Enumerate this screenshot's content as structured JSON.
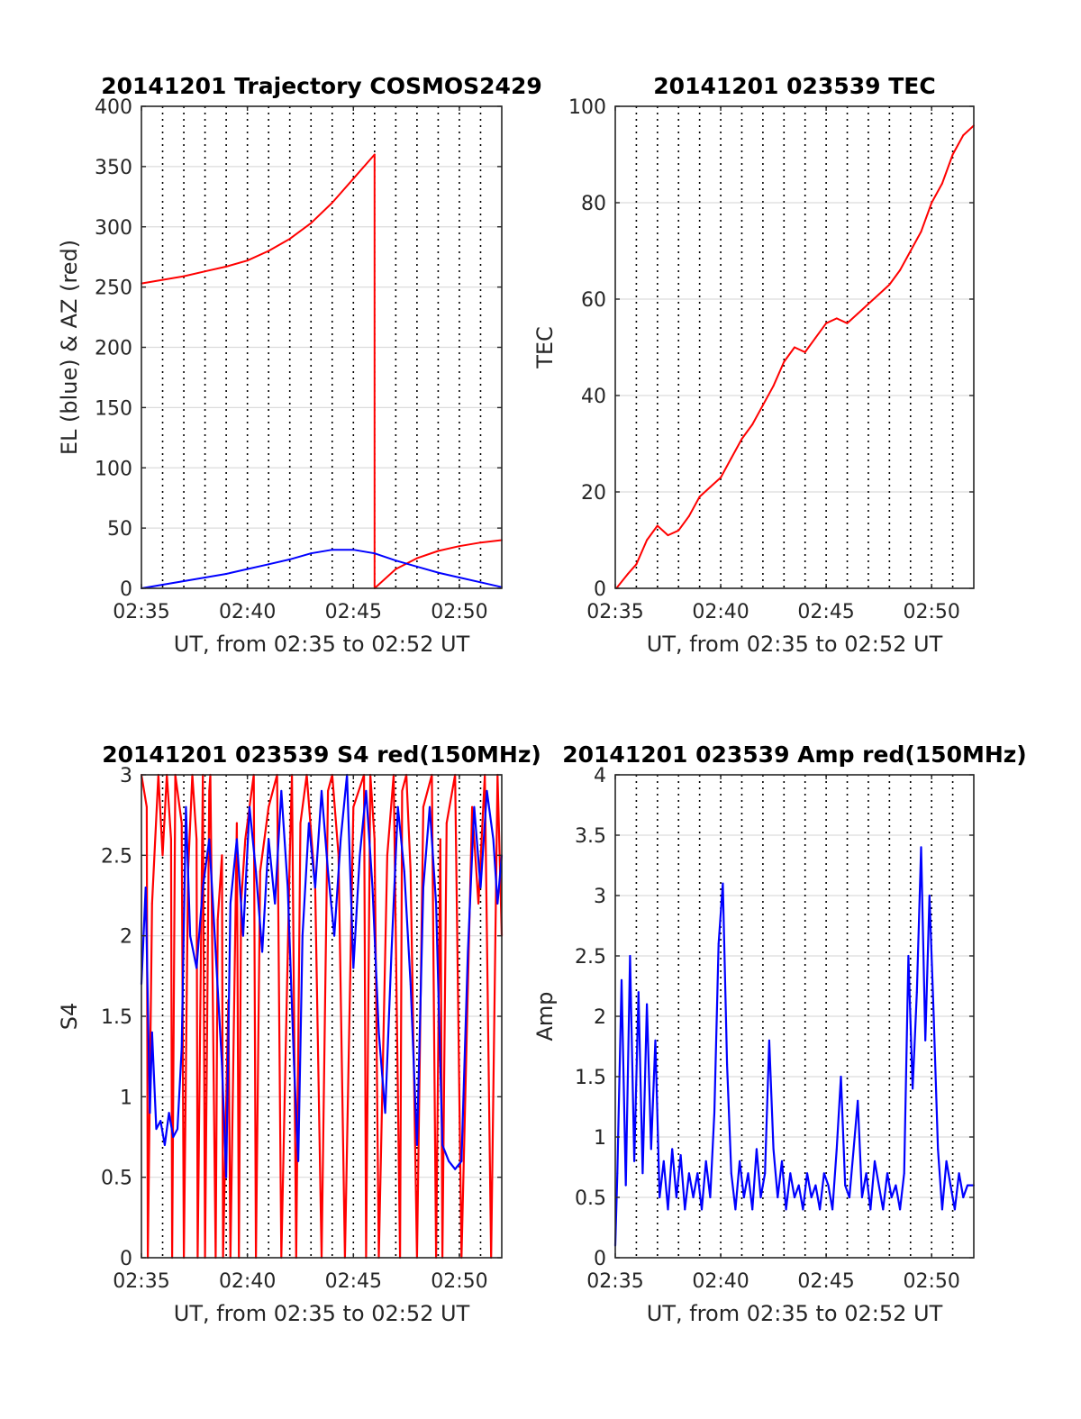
{
  "chart_data": [
    {
      "type": "line",
      "title": "20141201 Trajectory COSMOS2429",
      "xlabel": "UT, from 02:35 to 02:52 UT",
      "ylabel": "EL (blue) & AZ (red)",
      "x_range": [
        "02:35",
        "02:52"
      ],
      "ylim": [
        0,
        400
      ],
      "x_ticks": [
        "02:35",
        "02:40",
        "02:45",
        "02:50"
      ],
      "y_ticks": [
        "0",
        "50",
        "100",
        "150",
        "200",
        "250",
        "300",
        "350",
        "400"
      ],
      "grid": true,
      "colors": {
        "el": "#0000ff",
        "az": "#ff0000"
      },
      "series": [
        {
          "key": "az",
          "color": "#ff0000",
          "x": [
            0,
            1,
            2,
            3,
            4,
            5,
            6,
            7,
            8,
            9,
            10,
            11,
            11,
            12,
            13,
            14,
            15,
            16,
            17
          ],
          "values": [
            253,
            256,
            259,
            263,
            267,
            272,
            280,
            290,
            303,
            320,
            340,
            360,
            0,
            16,
            25,
            31,
            35,
            38,
            40
          ]
        },
        {
          "key": "el",
          "color": "#0000ff",
          "x": [
            0,
            1,
            2,
            3,
            4,
            5,
            6,
            7,
            8,
            9,
            10,
            11,
            12,
            13,
            14,
            15,
            16,
            17
          ],
          "values": [
            0,
            3,
            6,
            9,
            12,
            16,
            20,
            24,
            29,
            32,
            32,
            29,
            23,
            18,
            13,
            9,
            5,
            1
          ]
        }
      ]
    },
    {
      "type": "line",
      "title": "20141201 023539 TEC",
      "xlabel": "UT, from 02:35 to 02:52 UT",
      "ylabel": "TEC",
      "x_range": [
        "02:35",
        "02:52"
      ],
      "ylim": [
        0,
        100
      ],
      "x_ticks": [
        "02:35",
        "02:40",
        "02:45",
        "02:50"
      ],
      "y_ticks": [
        "0",
        "20",
        "40",
        "60",
        "80",
        "100"
      ],
      "grid": true,
      "series": [
        {
          "key": "tec",
          "color": "#ff0000",
          "x": [
            0.05,
            0.6,
            1.0,
            1.5,
            2.0,
            2.5,
            3.0,
            3.5,
            4.0,
            4.5,
            5.0,
            5.5,
            6.0,
            6.5,
            7.0,
            7.5,
            8.0,
            8.5,
            9.0,
            9.5,
            10.0,
            10.5,
            11.0,
            11.5,
            12.0,
            12.5,
            13.0,
            13.5,
            14.0,
            14.5,
            15.0,
            15.5,
            16.0,
            16.5,
            17.0
          ],
          "values": [
            0,
            3,
            5,
            10,
            13,
            11,
            12,
            15,
            19,
            21,
            23,
            27,
            31,
            34,
            38,
            42,
            47,
            50,
            49,
            52,
            55,
            56,
            55,
            57,
            59,
            61,
            63,
            66,
            70,
            74,
            80,
            84,
            90,
            94,
            96
          ]
        }
      ]
    },
    {
      "type": "line",
      "title": "20141201 023539 S4 red(150MHz)",
      "xlabel": "UT, from 02:35 to 02:52 UT",
      "ylabel": "S4",
      "x_range": [
        "02:35",
        "02:52"
      ],
      "ylim": [
        0,
        3
      ],
      "x_ticks": [
        "02:35",
        "02:40",
        "02:45",
        "02:50"
      ],
      "y_ticks": [
        "0",
        "0.5",
        "1",
        "1.5",
        "2",
        "2.5",
        "3"
      ],
      "grid": true,
      "series": [
        {
          "key": "s4_red",
          "color": "#ff0000",
          "x": [
            0.0,
            0.25,
            0.3,
            0.5,
            0.8,
            1.0,
            1.2,
            1.4,
            1.45,
            1.6,
            1.9,
            2.0,
            2.2,
            2.4,
            2.6,
            2.65,
            2.9,
            3.0,
            3.2,
            3.25,
            3.5,
            3.6,
            3.8,
            3.85,
            4.1,
            4.2,
            4.5,
            4.6,
            4.7,
            4.9,
            5.3,
            5.4,
            5.6,
            6.0,
            6.4,
            6.6,
            7.0,
            7.1,
            7.3,
            7.5,
            7.8,
            8.2,
            8.5,
            8.8,
            9.0,
            9.3,
            9.6,
            10.0,
            10.5,
            10.6,
            10.8,
            11.0,
            11.2,
            11.6,
            11.9,
            12.2,
            12.3,
            12.5,
            12.7,
            13.0,
            13.3,
            13.7,
            13.9,
            14.1,
            14.2,
            14.4,
            14.8,
            15.1,
            15.6,
            15.9,
            16.2,
            16.5,
            16.8,
            17.0
          ],
          "values": [
            3.0,
            2.8,
            0.0,
            2.2,
            3.0,
            2.5,
            3.0,
            2.6,
            0.0,
            3.0,
            2.7,
            0.0,
            2.4,
            3.0,
            2.6,
            0.0,
            3.0,
            0.0,
            2.9,
            3.0,
            0.0,
            2.1,
            2.5,
            0.0,
            1.6,
            0.0,
            2.7,
            0.0,
            2.2,
            2.6,
            3.0,
            0.0,
            2.4,
            2.8,
            3.0,
            0.0,
            2.5,
            3.0,
            0.0,
            2.7,
            3.0,
            2.3,
            0.0,
            2.9,
            3.0,
            2.5,
            0.0,
            2.8,
            3.0,
            0.0,
            3.0,
            2.6,
            0.0,
            2.5,
            3.0,
            0.0,
            2.9,
            3.0,
            2.4,
            0.0,
            2.8,
            3.0,
            0.0,
            2.6,
            0.0,
            2.7,
            3.0,
            0.0,
            2.8,
            2.2,
            3.0,
            0.0,
            3.0,
            2.0
          ]
        },
        {
          "key": "s4_blue",
          "color": "#0000ff",
          "x": [
            0.0,
            0.2,
            0.4,
            0.5,
            0.7,
            0.9,
            1.1,
            1.3,
            1.5,
            1.7,
            1.9,
            2.1,
            2.3,
            2.6,
            2.9,
            3.2,
            3.5,
            3.8,
            4.0,
            4.2,
            4.5,
            4.8,
            5.1,
            5.4,
            5.7,
            6.0,
            6.3,
            6.6,
            6.9,
            7.2,
            7.4,
            7.6,
            7.9,
            8.2,
            8.5,
            8.8,
            9.1,
            9.4,
            9.7,
            10.0,
            10.3,
            10.6,
            10.9,
            11.2,
            11.5,
            11.8,
            12.1,
            12.4,
            12.7,
            13.0,
            13.3,
            13.6,
            13.9,
            14.2,
            14.5,
            14.8,
            15.1,
            15.4,
            15.7,
            16.0,
            16.3,
            16.6,
            16.8,
            17.0
          ],
          "values": [
            1.7,
            2.3,
            0.9,
            1.4,
            0.8,
            0.85,
            0.7,
            0.9,
            0.75,
            0.8,
            1.3,
            2.8,
            2.0,
            1.8,
            2.3,
            2.6,
            1.9,
            1.2,
            0.5,
            2.2,
            2.6,
            2.0,
            2.8,
            2.4,
            1.9,
            2.6,
            2.2,
            2.9,
            2.3,
            1.2,
            0.6,
            2.0,
            2.7,
            2.3,
            2.9,
            2.4,
            2.0,
            2.6,
            3.0,
            1.8,
            2.5,
            2.9,
            2.3,
            1.4,
            0.9,
            1.9,
            2.8,
            2.4,
            1.7,
            0.7,
            2.3,
            2.8,
            2.2,
            0.7,
            0.6,
            0.55,
            0.6,
            1.9,
            2.8,
            2.3,
            2.9,
            2.6,
            2.2,
            2.5
          ]
        }
      ]
    },
    {
      "type": "line",
      "title": "20141201 023539 Amp red(150MHz)",
      "xlabel": "UT, from 02:35 to 02:52 UT",
      "ylabel": "Amp",
      "x_range": [
        "02:35",
        "02:52"
      ],
      "ylim": [
        0,
        4
      ],
      "x_ticks": [
        "02:35",
        "02:40",
        "02:45",
        "02:50"
      ],
      "y_ticks": [
        "0",
        "0.5",
        "1",
        "1.5",
        "2",
        "2.5",
        "3",
        "3.5",
        "4"
      ],
      "grid": true,
      "series": [
        {
          "key": "amp_blue",
          "color": "#0000ff",
          "x": [
            0.0,
            0.1,
            0.3,
            0.5,
            0.7,
            0.9,
            1.1,
            1.3,
            1.5,
            1.7,
            1.9,
            2.1,
            2.3,
            2.5,
            2.7,
            2.9,
            3.1,
            3.3,
            3.5,
            3.7,
            3.9,
            4.1,
            4.3,
            4.5,
            4.7,
            4.9,
            5.1,
            5.3,
            5.5,
            5.7,
            5.9,
            6.1,
            6.3,
            6.5,
            6.7,
            6.9,
            7.1,
            7.3,
            7.5,
            7.7,
            7.9,
            8.1,
            8.3,
            8.5,
            8.7,
            8.9,
            9.1,
            9.3,
            9.5,
            9.7,
            9.9,
            10.1,
            10.3,
            10.5,
            10.7,
            10.9,
            11.1,
            11.3,
            11.5,
            11.7,
            11.9,
            12.1,
            12.3,
            12.5,
            12.7,
            12.9,
            13.1,
            13.3,
            13.5,
            13.7,
            13.9,
            14.1,
            14.3,
            14.5,
            14.7,
            14.9,
            15.1,
            15.3,
            15.5,
            15.7,
            15.9,
            16.1,
            16.3,
            16.5,
            16.7,
            17.0
          ],
          "values": [
            0.1,
            0.7,
            2.3,
            0.6,
            2.5,
            0.8,
            2.2,
            0.7,
            2.1,
            0.9,
            1.8,
            0.5,
            0.8,
            0.4,
            0.9,
            0.5,
            0.85,
            0.4,
            0.7,
            0.5,
            0.7,
            0.4,
            0.8,
            0.5,
            1.2,
            2.6,
            3.1,
            1.6,
            0.7,
            0.4,
            0.8,
            0.5,
            0.7,
            0.4,
            0.9,
            0.5,
            0.7,
            1.8,
            0.9,
            0.5,
            0.8,
            0.4,
            0.7,
            0.5,
            0.6,
            0.4,
            0.7,
            0.5,
            0.6,
            0.4,
            0.7,
            0.6,
            0.4,
            0.9,
            1.5,
            0.6,
            0.5,
            0.9,
            1.3,
            0.5,
            0.7,
            0.4,
            0.8,
            0.6,
            0.4,
            0.7,
            0.5,
            0.6,
            0.4,
            0.7,
            2.5,
            1.4,
            2.2,
            3.4,
            1.8,
            3.0,
            2.0,
            0.9,
            0.4,
            0.8,
            0.6,
            0.4,
            0.7,
            0.5,
            0.6,
            0.6
          ]
        }
      ]
    }
  ]
}
